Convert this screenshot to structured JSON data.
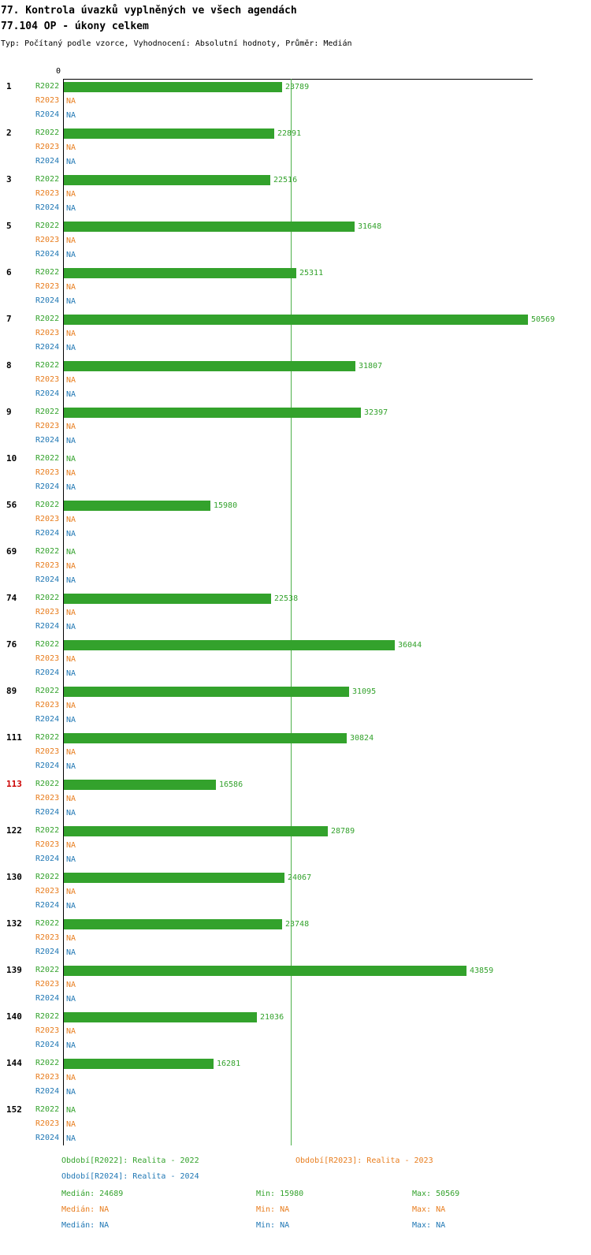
{
  "title": "77. Kontrola úvazků vyplněných ve všech agendách",
  "subtitle": "77.104 OP - úkony celkem",
  "meta": "Typ: Počítaný podle vzorce, Vyhodnocení: Absolutní hodnoty, Průměr: Medián",
  "colors": {
    "r2022": "#33a22c",
    "r2023": "#e87d1e",
    "r2024": "#1f77b4",
    "highlight": "#cc0000",
    "axis": "#000000",
    "median_line": "#4daf4a"
  },
  "chart_data": {
    "type": "bar",
    "orientation": "horizontal",
    "series": [
      "R2022",
      "R2023",
      "R2024"
    ],
    "na_label": "NA",
    "axis": {
      "origin_label": "0",
      "max": 50569
    },
    "median_line": 24689,
    "groups": [
      {
        "id": "1",
        "highlight": false,
        "R2022": 23789,
        "R2023": null,
        "R2024": null
      },
      {
        "id": "2",
        "highlight": false,
        "R2022": 22891,
        "R2023": null,
        "R2024": null
      },
      {
        "id": "3",
        "highlight": false,
        "R2022": 22516,
        "R2023": null,
        "R2024": null
      },
      {
        "id": "5",
        "highlight": false,
        "R2022": 31648,
        "R2023": null,
        "R2024": null
      },
      {
        "id": "6",
        "highlight": false,
        "R2022": 25311,
        "R2023": null,
        "R2024": null
      },
      {
        "id": "7",
        "highlight": false,
        "R2022": 50569,
        "R2023": null,
        "R2024": null
      },
      {
        "id": "8",
        "highlight": false,
        "R2022": 31807,
        "R2023": null,
        "R2024": null
      },
      {
        "id": "9",
        "highlight": false,
        "R2022": 32397,
        "R2023": null,
        "R2024": null
      },
      {
        "id": "10",
        "highlight": false,
        "R2022": null,
        "R2023": null,
        "R2024": null
      },
      {
        "id": "56",
        "highlight": false,
        "R2022": 15980,
        "R2023": null,
        "R2024": null
      },
      {
        "id": "69",
        "highlight": false,
        "R2022": null,
        "R2023": null,
        "R2024": null
      },
      {
        "id": "74",
        "highlight": false,
        "R2022": 22538,
        "R2023": null,
        "R2024": null
      },
      {
        "id": "76",
        "highlight": false,
        "R2022": 36044,
        "R2023": null,
        "R2024": null
      },
      {
        "id": "89",
        "highlight": false,
        "R2022": 31095,
        "R2023": null,
        "R2024": null
      },
      {
        "id": "111",
        "highlight": false,
        "R2022": 30824,
        "R2023": null,
        "R2024": null
      },
      {
        "id": "113",
        "highlight": true,
        "R2022": 16586,
        "R2023": null,
        "R2024": null
      },
      {
        "id": "122",
        "highlight": false,
        "R2022": 28789,
        "R2023": null,
        "R2024": null
      },
      {
        "id": "130",
        "highlight": false,
        "R2022": 24067,
        "R2023": null,
        "R2024": null
      },
      {
        "id": "132",
        "highlight": false,
        "R2022": 23748,
        "R2023": null,
        "R2024": null
      },
      {
        "id": "139",
        "highlight": false,
        "R2022": 43859,
        "R2023": null,
        "R2024": null
      },
      {
        "id": "140",
        "highlight": false,
        "R2022": 21036,
        "R2023": null,
        "R2024": null
      },
      {
        "id": "144",
        "highlight": false,
        "R2022": 16281,
        "R2023": null,
        "R2024": null
      },
      {
        "id": "152",
        "highlight": false,
        "R2022": null,
        "R2023": null,
        "R2024": null
      }
    ]
  },
  "legend": {
    "r2022": "Období[R2022]: Realita - 2022",
    "r2023": "Období[R2023]: Realita - 2023",
    "r2024": "Období[R2024]: Realita - 2024"
  },
  "stats": {
    "r2022": {
      "median": "Medián: 24689",
      "min": "Min: 15980",
      "max": "Max: 50569"
    },
    "r2023": {
      "median": "Medián: NA",
      "min": "Min: NA",
      "max": "Max: NA"
    },
    "r2024": {
      "median": "Medián: NA",
      "min": "Min: NA",
      "max": "Max: NA"
    }
  }
}
